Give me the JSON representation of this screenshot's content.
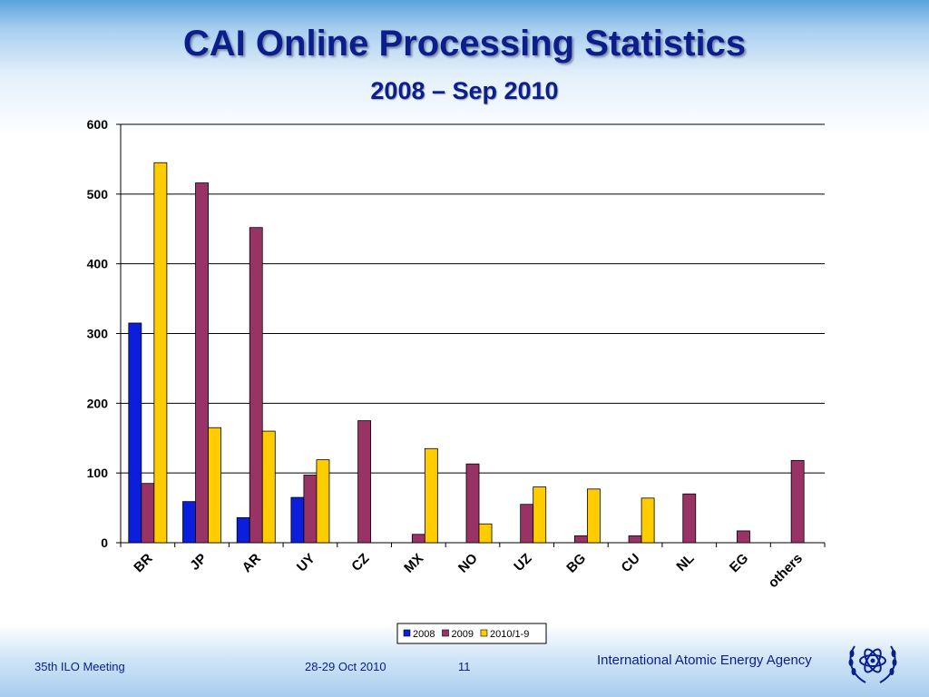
{
  "slide": {
    "title": "CAI Online Processing Statistics",
    "subtitle": "2008 – Sep 2010"
  },
  "footer": {
    "meeting": "35th ILO Meeting",
    "date": "28-29 Oct 2010",
    "page": "11",
    "agency": "International Atomic Energy Agency",
    "logo_icon": "iaea-atom-laurel-logo"
  },
  "chart_data": {
    "type": "bar",
    "categories": [
      "BR",
      "JP",
      "AR",
      "UY",
      "CZ",
      "MX",
      "NO",
      "UZ",
      "BG",
      "CU",
      "NL",
      "EG",
      "others"
    ],
    "series": [
      {
        "name": "2008",
        "color": "#0a1edc",
        "values": [
          315,
          59,
          36,
          65,
          0,
          0,
          0,
          0,
          0,
          0,
          0,
          0,
          0
        ]
      },
      {
        "name": "2009",
        "color": "#993366",
        "values": [
          85,
          516,
          452,
          97,
          175,
          12,
          113,
          55,
          10,
          10,
          70,
          17,
          118
        ]
      },
      {
        "name": "2010/1-9",
        "color": "#ffcc00",
        "values": [
          545,
          165,
          160,
          119,
          0,
          135,
          27,
          80,
          77,
          64,
          0,
          0,
          0
        ]
      }
    ],
    "ylim": [
      0,
      600
    ],
    "yticks": [
      "0",
      "100",
      "200",
      "300",
      "400",
      "500",
      "600"
    ],
    "grid": true,
    "legend_position": "bottom"
  }
}
